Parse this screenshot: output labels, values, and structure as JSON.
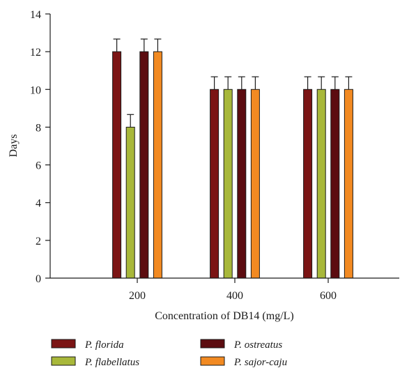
{
  "chart_data": {
    "type": "bar",
    "categories": [
      "200",
      "400",
      "600"
    ],
    "series": [
      {
        "name": "P. florida",
        "color": "#7b1414",
        "values": [
          12,
          10,
          10
        ],
        "errors": [
          0.67,
          0.67,
          0.67
        ]
      },
      {
        "name": "P. flabellatus",
        "color": "#a8b83a",
        "values": [
          8,
          10,
          10
        ],
        "errors": [
          0.67,
          0.67,
          0.67
        ]
      },
      {
        "name": "P. ostreatus",
        "color": "#5c0c10",
        "values": [
          12,
          10,
          10
        ],
        "errors": [
          0.67,
          0.67,
          0.67
        ]
      },
      {
        "name": "P. sajor-caju",
        "color": "#f28a22",
        "values": [
          12,
          10,
          10
        ],
        "errors": [
          0.67,
          0.67,
          0.67
        ]
      }
    ],
    "xlabel": "Concentration of DB14 (mg/L)",
    "ylabel": "Days",
    "ylim": [
      0,
      14
    ],
    "yticks": [
      "0",
      "2",
      "4",
      "6",
      "8",
      "10",
      "12",
      "14"
    ],
    "grid": false,
    "legend_position": "bottom"
  }
}
